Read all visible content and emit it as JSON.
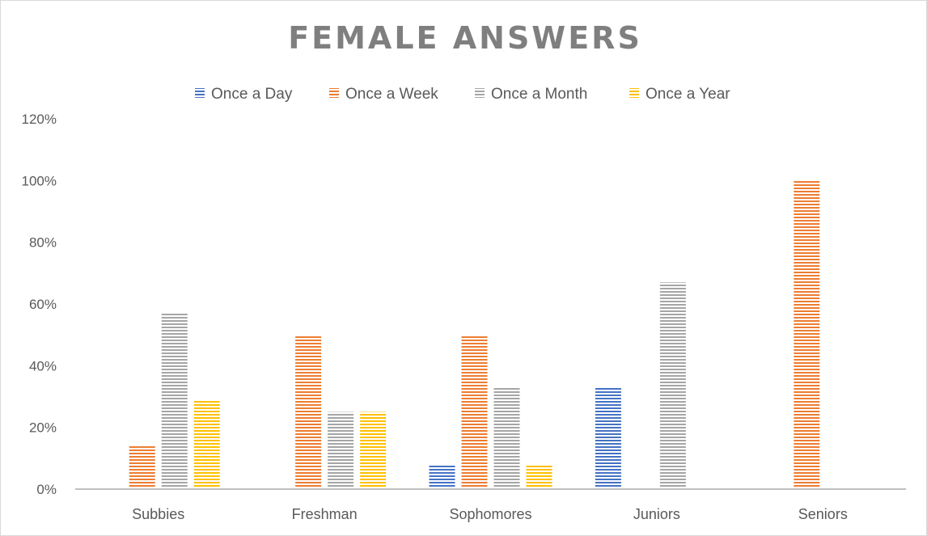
{
  "chart_data": {
    "type": "bar",
    "title": "FEMALE ANSWERS",
    "categories": [
      "Subbies",
      "Freshman",
      "Sophomores",
      "Juniors",
      "Seniors"
    ],
    "series": [
      {
        "name": "Once a Day",
        "color": "#4472c4",
        "values": [
          0,
          0,
          8,
          33,
          0
        ]
      },
      {
        "name": "Once a Week",
        "color": "#ed7d31",
        "values": [
          14,
          50,
          50,
          0,
          100
        ]
      },
      {
        "name": "Once a Month",
        "color": "#a5a5a5",
        "values": [
          57,
          25,
          33,
          67,
          0
        ]
      },
      {
        "name": "Once a Year",
        "color": "#ffc000",
        "values": [
          29,
          25,
          8,
          0,
          0
        ]
      }
    ],
    "yticks": [
      "0%",
      "20%",
      "40%",
      "60%",
      "80%",
      "100%",
      "120%"
    ],
    "ylim": [
      0,
      120
    ],
    "xlabel": "",
    "ylabel": "",
    "legend": "top",
    "grid": false
  }
}
